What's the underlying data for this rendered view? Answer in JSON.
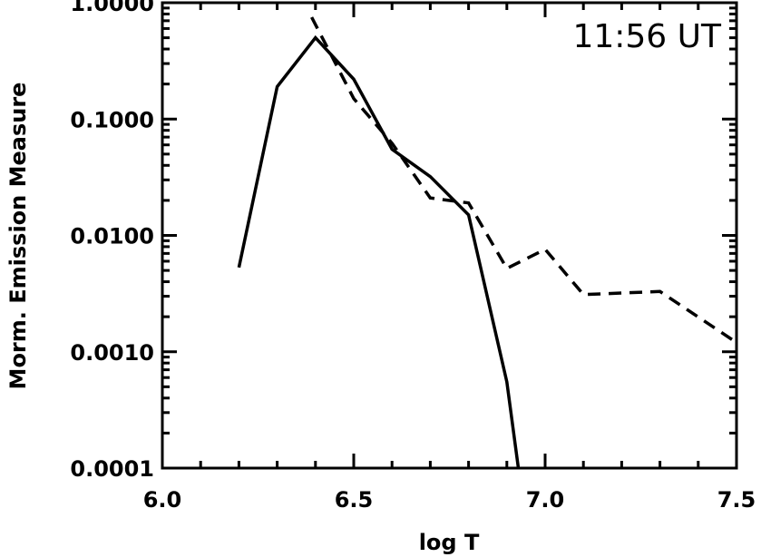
{
  "chart_data": {
    "type": "line",
    "title": "",
    "xlabel": "log T",
    "ylabel": "Morm. Emission Measure",
    "annotation": "11:56 UT",
    "xlim": [
      6.0,
      7.5
    ],
    "ylim": [
      0.0001,
      1.0
    ],
    "yscale": "log",
    "grid": false,
    "legend": "none",
    "xticks": [
      6.0,
      6.5,
      7.0,
      7.5
    ],
    "xtick_labels": [
      "6.0",
      "6.5",
      "7.0",
      "7.5"
    ],
    "yticks": [
      0.0001,
      0.001,
      0.01,
      0.1,
      1.0
    ],
    "ytick_labels": [
      "0.0001",
      "0.0010",
      "0.0100",
      "0.1000",
      "1.0000"
    ],
    "series": [
      {
        "style": "solid",
        "color": "#000000",
        "x": [
          6.2,
          6.3,
          6.4,
          6.5,
          6.6,
          6.7,
          6.8,
          6.9,
          6.93
        ],
        "y": [
          0.0053,
          0.19,
          0.5,
          0.22,
          0.055,
          0.032,
          0.015,
          0.00055,
          0.0001
        ]
      },
      {
        "style": "dashed",
        "color": "#000000",
        "x": [
          6.39,
          6.5,
          6.6,
          6.7,
          6.8,
          6.9,
          7.0,
          7.1,
          7.3,
          7.5
        ],
        "y": [
          0.75,
          0.15,
          0.062,
          0.021,
          0.019,
          0.0052,
          0.0076,
          0.0031,
          0.0033,
          0.0012
        ]
      }
    ]
  }
}
